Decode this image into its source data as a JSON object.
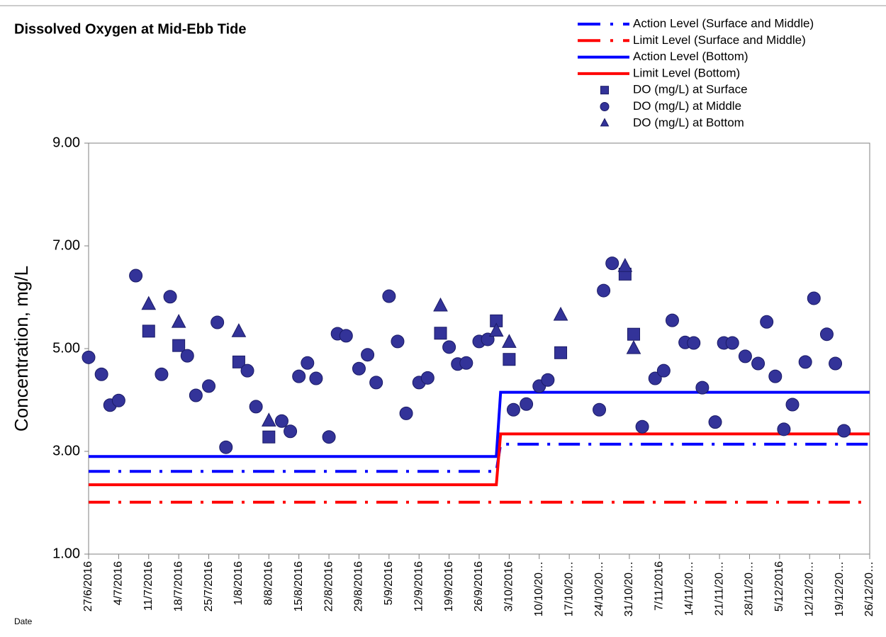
{
  "chart_data": {
    "type": "scatter",
    "title": "Dissolved Oxygen at Mid-Ebb Tide",
    "y_label": "Concentration, mg/L",
    "x_label": "Date",
    "legend": "upper right",
    "grid": false,
    "xlim": [
      "2016-06-27",
      "2016-12-26"
    ],
    "xticks": [
      {
        "value": "2016-06-27",
        "label": "27/6/2016"
      },
      {
        "value": "2016-07-04",
        "label": "4/7/2016"
      },
      {
        "value": "2016-07-11",
        "label": "11/7/2016"
      },
      {
        "value": "2016-07-18",
        "label": "18/7/2016"
      },
      {
        "value": "2016-07-25",
        "label": "25/7/2016"
      },
      {
        "value": "2016-08-01",
        "label": "1/8/2016"
      },
      {
        "value": "2016-08-08",
        "label": "8/8/2016"
      },
      {
        "value": "2016-08-15",
        "label": "15/8/2016"
      },
      {
        "value": "2016-08-22",
        "label": "22/8/2016"
      },
      {
        "value": "2016-08-29",
        "label": "29/8/2016"
      },
      {
        "value": "2016-09-05",
        "label": "5/9/2016"
      },
      {
        "value": "2016-09-12",
        "label": "12/9/2016"
      },
      {
        "value": "2016-09-19",
        "label": "19/9/2016"
      },
      {
        "value": "2016-09-26",
        "label": "26/9/2016"
      },
      {
        "value": "2016-10-03",
        "label": "3/10/2016"
      },
      {
        "value": "2016-10-10",
        "label": "10/10/20…"
      },
      {
        "value": "2016-10-17",
        "label": "17/10/20…"
      },
      {
        "value": "2016-10-24",
        "label": "24/10/20…"
      },
      {
        "value": "2016-10-31",
        "label": "31/10/20…"
      },
      {
        "value": "2016-11-07",
        "label": "7/11/2016"
      },
      {
        "value": "2016-11-14",
        "label": "14/11/20…"
      },
      {
        "value": "2016-11-21",
        "label": "21/11/20…"
      },
      {
        "value": "2016-11-28",
        "label": "28/11/20…"
      },
      {
        "value": "2016-12-05",
        "label": "5/12/2016"
      },
      {
        "value": "2016-12-12",
        "label": "12/12/20…"
      },
      {
        "value": "2016-12-19",
        "label": "19/12/20…"
      },
      {
        "value": "2016-12-26",
        "label": "26/12/20…"
      }
    ],
    "ylim": [
      1,
      9
    ],
    "yticks": [
      {
        "value": 1,
        "label": "1.00"
      },
      {
        "value": 3,
        "label": "3.00"
      },
      {
        "value": 5,
        "label": "5.00"
      },
      {
        "value": 7,
        "label": "7.00"
      },
      {
        "value": 9,
        "label": "9.00"
      }
    ],
    "series": [
      {
        "name": "Action Level (Surface and Middle)",
        "color": "#0000ff",
        "style": "dashdot",
        "x": [
          "2016-06-27",
          "2016-09-30",
          "2016-10-01",
          "2016-12-26"
        ],
        "values": [
          2.61,
          2.61,
          3.14,
          3.14
        ]
      },
      {
        "name": "Limit Level (Surface and Middle)",
        "color": "#ff0000",
        "style": "dashdot",
        "x": [
          "2016-06-27",
          "2016-12-24"
        ],
        "values": [
          2.01,
          2.01
        ]
      },
      {
        "name": "Action Level (Bottom)",
        "color": "#0000ff",
        "style": "solid",
        "x": [
          "2016-06-27",
          "2016-09-30",
          "2016-10-01",
          "2016-12-26"
        ],
        "values": [
          2.9,
          2.9,
          4.15,
          4.15
        ]
      },
      {
        "name": "Limit Level (Bottom)",
        "color": "#ff0000",
        "style": "solid",
        "x": [
          "2016-06-27",
          "2016-09-30",
          "2016-10-01",
          "2016-12-26"
        ],
        "values": [
          2.35,
          2.35,
          3.34,
          3.34
        ]
      },
      {
        "name": "DO (mg/L) at Surface",
        "color": "#333399",
        "marker": "square",
        "x": [
          "2016-07-11",
          "2016-07-18",
          "2016-08-01",
          "2016-08-08",
          "2016-09-17",
          "2016-09-30",
          "2016-10-03",
          "2016-10-15",
          "2016-10-30",
          "2016-11-01"
        ],
        "values": [
          5.34,
          5.06,
          4.74,
          3.28,
          5.3,
          5.54,
          4.79,
          4.92,
          6.45,
          5.28
        ]
      },
      {
        "name": "DO (mg/L) at Middle",
        "color": "#333399",
        "marker": "circle",
        "x": [
          "2016-06-27",
          "2016-06-30",
          "2016-07-02",
          "2016-07-04",
          "2016-07-08",
          "2016-07-14",
          "2016-07-16",
          "2016-07-20",
          "2016-07-22",
          "2016-07-25",
          "2016-07-27",
          "2016-07-29",
          "2016-08-03",
          "2016-08-05",
          "2016-08-11",
          "2016-08-13",
          "2016-08-15",
          "2016-08-17",
          "2016-08-19",
          "2016-08-22",
          "2016-08-24",
          "2016-08-26",
          "2016-08-29",
          "2016-08-31",
          "2016-09-02",
          "2016-09-05",
          "2016-09-07",
          "2016-09-09",
          "2016-09-12",
          "2016-09-14",
          "2016-09-19",
          "2016-09-21",
          "2016-09-23",
          "2016-09-26",
          "2016-09-28",
          "2016-10-04",
          "2016-10-07",
          "2016-10-10",
          "2016-10-12",
          "2016-10-24",
          "2016-10-25",
          "2016-10-27",
          "2016-11-03",
          "2016-11-06",
          "2016-11-08",
          "2016-11-10",
          "2016-11-13",
          "2016-11-15",
          "2016-11-17",
          "2016-11-20",
          "2016-11-22",
          "2016-11-24",
          "2016-11-27",
          "2016-11-30",
          "2016-12-02",
          "2016-12-04",
          "2016-12-06",
          "2016-12-08",
          "2016-12-11",
          "2016-12-13",
          "2016-12-16",
          "2016-12-18",
          "2016-12-20"
        ],
        "values": [
          4.83,
          4.5,
          3.9,
          3.99,
          6.42,
          4.5,
          6.01,
          4.86,
          4.09,
          4.27,
          5.51,
          3.08,
          4.57,
          3.87,
          3.59,
          3.39,
          4.46,
          4.72,
          4.42,
          3.28,
          5.29,
          5.25,
          4.61,
          4.88,
          4.34,
          6.02,
          5.14,
          3.74,
          4.34,
          4.43,
          5.03,
          4.7,
          4.72,
          5.14,
          5.18,
          3.81,
          3.92,
          4.27,
          4.39,
          3.81,
          6.13,
          6.66,
          3.48,
          4.42,
          4.57,
          5.55,
          5.12,
          5.11,
          4.24,
          3.57,
          5.11,
          5.11,
          4.85,
          4.71,
          5.52,
          4.46,
          3.43,
          3.91,
          4.74,
          5.98,
          5.28,
          4.71,
          3.4
        ]
      },
      {
        "name": "DO (mg/L) at Bottom",
        "color": "#333399",
        "marker": "triangle",
        "x": [
          "2016-07-11",
          "2016-07-18",
          "2016-08-01",
          "2016-08-08",
          "2016-09-17",
          "2016-09-30",
          "2016-10-03",
          "2016-10-15",
          "2016-10-30",
          "2016-11-01"
        ],
        "values": [
          5.86,
          5.51,
          5.33,
          3.59,
          5.83,
          5.34,
          5.12,
          5.65,
          6.6,
          5.0
        ]
      }
    ]
  }
}
